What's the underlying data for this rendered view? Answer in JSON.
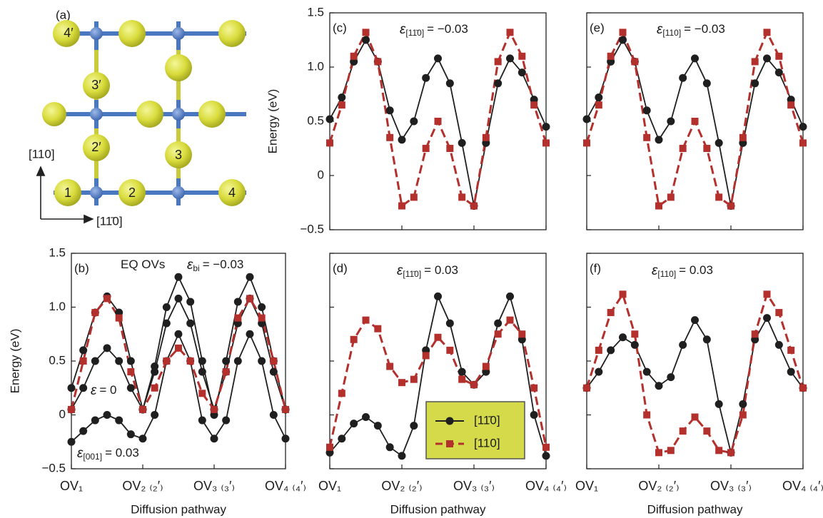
{
  "structure": {
    "label": "(a)",
    "sites": [
      "4′",
      "3′",
      "2′",
      "1",
      "2",
      "3",
      "4"
    ],
    "axes": [
      "[110]",
      "[11̄0]"
    ]
  },
  "chart_data": [
    {
      "type": "line",
      "label": "(b)",
      "ylabel": "Energy (eV)",
      "xlabel": "Diffusion pathway",
      "annotations": [
        {
          "text": "EQ OVs"
        },
        {
          "symbol": "ε",
          "sub": "bi",
          "text": "= −0.03"
        },
        {
          "symbol": "ε",
          "text": "= 0"
        },
        {
          "symbol": "ε",
          "sub": "[001]",
          "text": "= 0.03"
        }
      ],
      "x": [
        0,
        1,
        2,
        3,
        4,
        5,
        6,
        7,
        8,
        9,
        10,
        11,
        12,
        13,
        14,
        15,
        16,
        17,
        18
      ],
      "xlim": [
        0,
        18
      ],
      "xticks": [
        {
          "value": 0,
          "label": "OV₁"
        },
        {
          "value": 6,
          "label": "OV₂ ₍₂′₎"
        },
        {
          "value": 12,
          "label": "OV₃ ₍₃′₎"
        },
        {
          "value": 18,
          "label": "OV₄ ₍₄′₎"
        }
      ],
      "xtick_labels": true,
      "ylim": [
        -0.5,
        1.5
      ],
      "yticks": [
        {
          "value": -0.5,
          "label": "−0.5"
        },
        0,
        0.5,
        {
          "value": 1,
          "label": "1.0"
        },
        1.5
      ],
      "ytick_labels": true,
      "series": [
        {
          "color": "#1f1f1f",
          "marker": "circle",
          "dashed": false,
          "values": [
            0.25,
            0.6,
            0.95,
            1.1,
            0.95,
            0.5,
            0.05,
            0.45,
            1.0,
            1.28,
            1.05,
            0.5,
            0.0,
            0.5,
            1.05,
            1.28,
            1.0,
            0.5,
            0.05
          ]
        },
        {
          "color": "#1f1f1f",
          "marker": "circle",
          "dashed": false,
          "values": [
            0.05,
            0.25,
            0.5,
            0.62,
            0.5,
            0.25,
            0.05,
            0.4,
            0.85,
            1.08,
            0.85,
            0.4,
            0.05,
            0.4,
            0.85,
            1.08,
            0.85,
            0.4,
            0.05
          ]
        },
        {
          "color": "#1f1f1f",
          "marker": "circle",
          "dashed": false,
          "values": [
            -0.25,
            -0.15,
            -0.05,
            0.0,
            -0.05,
            -0.18,
            -0.22,
            0.0,
            0.5,
            0.75,
            0.5,
            -0.05,
            -0.22,
            -0.05,
            0.5,
            0.75,
            0.5,
            0.0,
            -0.22
          ]
        },
        {
          "color": "#b3302d",
          "marker": "square",
          "dashed": true,
          "values": [
            0.05,
            0.5,
            0.95,
            1.08,
            0.9,
            0.4,
            0.05,
            0.25,
            0.5,
            0.62,
            0.5,
            0.2,
            0.05,
            0.4,
            0.9,
            1.08,
            0.9,
            0.5,
            0.05
          ]
        }
      ]
    },
    {
      "type": "line",
      "label": "(c)",
      "ylabel": "Energy (eV)",
      "annotations": [
        {
          "symbol": "ε",
          "sub": "[11̄0]",
          "text": "= −0.03"
        }
      ],
      "x": [
        0,
        1,
        2,
        3,
        4,
        5,
        6,
        7,
        8,
        9,
        10,
        11,
        12,
        13,
        14,
        15,
        16,
        17,
        18
      ],
      "xlim": [
        0,
        18
      ],
      "xticks": [
        0,
        6,
        12,
        18
      ],
      "xtick_labels": false,
      "ylim": [
        -0.5,
        1.5
      ],
      "yticks": [
        {
          "value": -0.5,
          "label": "−0.5"
        },
        0,
        0.5,
        {
          "value": 1,
          "label": "1.0"
        },
        1.5
      ],
      "ytick_labels": true,
      "series": [
        {
          "color": "#1f1f1f",
          "marker": "circle",
          "dashed": false,
          "values": [
            0.52,
            0.72,
            1.05,
            1.25,
            1.05,
            0.6,
            0.33,
            0.5,
            0.9,
            1.08,
            0.85,
            0.3,
            -0.28,
            0.3,
            0.85,
            1.08,
            0.95,
            0.7,
            0.45
          ]
        },
        {
          "color": "#b3302d",
          "marker": "square",
          "dashed": true,
          "values": [
            0.3,
            0.65,
            1.1,
            1.32,
            1.05,
            0.35,
            -0.28,
            -0.2,
            0.25,
            0.5,
            0.25,
            -0.2,
            -0.28,
            0.35,
            1.05,
            1.32,
            1.1,
            0.65,
            0.3
          ]
        }
      ]
    },
    {
      "type": "line",
      "label": "(d)",
      "xlabel": "Diffusion pathway",
      "annotations": [
        {
          "symbol": "ε",
          "sub": "[11̄0]",
          "text": "= 0.03"
        }
      ],
      "x": [
        0,
        1,
        2,
        3,
        4,
        5,
        6,
        7,
        8,
        9,
        10,
        11,
        12,
        13,
        14,
        15,
        16,
        17,
        18
      ],
      "xlim": [
        0,
        18
      ],
      "xticks": [
        {
          "value": 0,
          "label": "OV₁"
        },
        {
          "value": 6,
          "label": "OV₂ ₍₂′₎"
        },
        {
          "value": 12,
          "label": "OV₃ ₍₃′₎"
        },
        {
          "value": 18,
          "label": "OV₄ ₍₄′₎"
        }
      ],
      "xtick_labels": true,
      "ylim": [
        -0.5,
        1.5
      ],
      "yticks": [
        -0.5,
        0,
        0.5,
        1,
        1.5
      ],
      "ytick_labels": false,
      "legend": "lower-right",
      "series": [
        {
          "name": "[11̄0]",
          "color": "#1f1f1f",
          "marker": "circle",
          "dashed": false,
          "values": [
            -0.35,
            -0.22,
            -0.08,
            -0.02,
            -0.1,
            -0.3,
            -0.38,
            -0.1,
            0.6,
            1.1,
            0.85,
            0.4,
            0.28,
            0.4,
            0.85,
            1.1,
            0.7,
            0.0,
            -0.38
          ]
        },
        {
          "name": "[110]",
          "color": "#b3302d",
          "marker": "square",
          "dashed": true,
          "values": [
            -0.3,
            0.2,
            0.7,
            0.88,
            0.8,
            0.45,
            0.3,
            0.33,
            0.55,
            0.72,
            0.6,
            0.33,
            0.28,
            0.45,
            0.75,
            0.88,
            0.75,
            0.25,
            -0.3
          ]
        }
      ]
    },
    {
      "type": "line",
      "label": "(e)",
      "annotations": [
        {
          "symbol": "ε",
          "sub": "[110]",
          "text": "= −0.03"
        }
      ],
      "x": [
        0,
        1,
        2,
        3,
        4,
        5,
        6,
        7,
        8,
        9,
        10,
        11,
        12,
        13,
        14,
        15,
        16,
        17,
        18
      ],
      "xlim": [
        0,
        18
      ],
      "xticks": [
        0,
        6,
        12,
        18
      ],
      "xtick_labels": false,
      "ylim": [
        -0.5,
        1.5
      ],
      "yticks": [
        -0.5,
        0,
        0.5,
        1,
        1.5
      ],
      "ytick_labels": false,
      "series": [
        {
          "color": "#1f1f1f",
          "marker": "circle",
          "dashed": false,
          "values": [
            0.52,
            0.72,
            1.05,
            1.25,
            1.05,
            0.6,
            0.33,
            0.5,
            0.9,
            1.08,
            0.85,
            0.3,
            -0.28,
            0.3,
            0.85,
            1.08,
            0.95,
            0.7,
            0.45
          ]
        },
        {
          "color": "#b3302d",
          "marker": "square",
          "dashed": true,
          "values": [
            0.3,
            0.65,
            1.1,
            1.32,
            1.05,
            0.35,
            -0.28,
            -0.2,
            0.25,
            0.5,
            0.25,
            -0.2,
            -0.28,
            0.35,
            1.05,
            1.32,
            1.1,
            0.65,
            0.3
          ]
        }
      ]
    },
    {
      "type": "line",
      "label": "(f)",
      "xlabel": "Diffusion pathway",
      "annotations": [
        {
          "symbol": "ε",
          "sub": "[110]",
          "text": "= 0.03"
        }
      ],
      "x": [
        0,
        1,
        2,
        3,
        4,
        5,
        6,
        7,
        8,
        9,
        10,
        11,
        12,
        13,
        14,
        15,
        16,
        17,
        18
      ],
      "xlim": [
        0,
        18
      ],
      "xticks": [
        {
          "value": 0,
          "label": "OV₁"
        },
        {
          "value": 6,
          "label": "OV₂ ₍₂′₎"
        },
        {
          "value": 12,
          "label": "OV₃ ₍₃′₎"
        },
        {
          "value": 18,
          "label": "OV₄ ₍₄′₎"
        }
      ],
      "xtick_labels": true,
      "ylim": [
        -0.5,
        1.5
      ],
      "yticks": [
        -0.5,
        0,
        0.5,
        1,
        1.5
      ],
      "ytick_labels": false,
      "series": [
        {
          "color": "#1f1f1f",
          "marker": "circle",
          "dashed": false,
          "values": [
            0.25,
            0.4,
            0.6,
            0.72,
            0.65,
            0.4,
            0.27,
            0.35,
            0.65,
            0.88,
            0.7,
            0.1,
            -0.35,
            0.1,
            0.7,
            0.9,
            0.65,
            0.4,
            0.25
          ]
        },
        {
          "color": "#b3302d",
          "marker": "square",
          "dashed": true,
          "values": [
            0.25,
            0.6,
            0.95,
            1.12,
            0.75,
            0.0,
            -0.35,
            -0.33,
            -0.15,
            -0.02,
            -0.15,
            -0.33,
            -0.35,
            0.0,
            0.75,
            1.12,
            0.95,
            0.6,
            0.25
          ]
        }
      ]
    }
  ]
}
